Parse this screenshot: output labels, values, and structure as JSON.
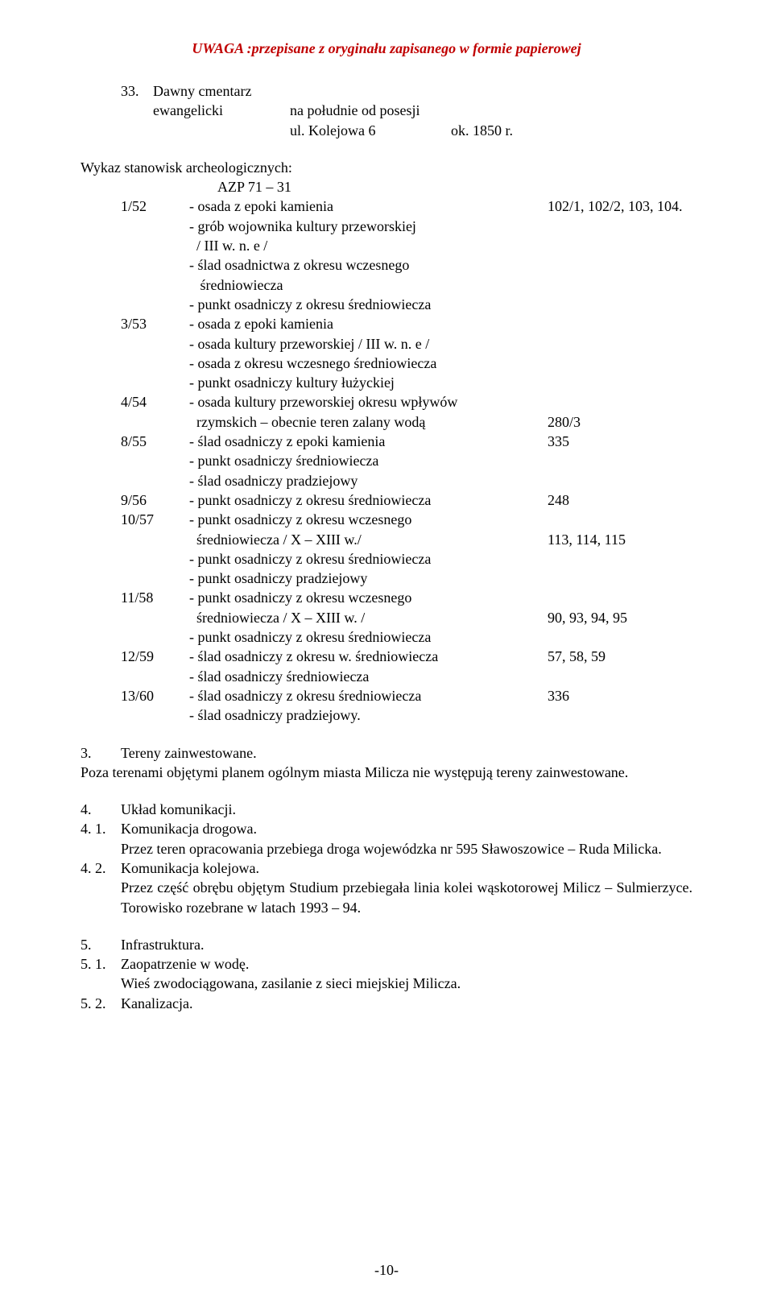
{
  "header": "UWAGA :przepisane z oryginału zapisanego w  formie papierowej",
  "item33": {
    "num": "33.",
    "label": "Dawny cmentarz",
    "sub1_label": "ewangelicki",
    "sub1_text": "na południe od posesji",
    "sub2_text": "ul. Kolejowa 6",
    "sub2_right": "ok. 1850 r."
  },
  "wykaz_title": "Wykaz stanowisk archeologicznych:",
  "azp_label": "AZP 71 – 31",
  "azp": [
    {
      "id": "1/52",
      "line": "- osada z epoki kamienia",
      "num": "102/1, 102/2, 103, 104.",
      "sub": [
        "- grób wojownika kultury przeworskiej",
        "  / III w. n. e /",
        "- ślad osadnictwa z okresu wczesnego",
        "   średniowiecza",
        "- punkt osadniczy z okresu średniowiecza"
      ]
    },
    {
      "id": "3/53",
      "line": "- osada z epoki kamienia",
      "num": "",
      "sub": [
        "- osada kultury przeworskiej / III w. n. e /",
        "- osada z okresu wczesnego średniowiecza",
        "- punkt osadniczy kultury łużyckiej"
      ]
    },
    {
      "id": "4/54",
      "line": "- osada kultury przeworskiej okresu wpływów",
      "num": "",
      "sub_special": {
        "text": "  rzymskich – obecnie teren zalany wodą",
        "num": "280/3"
      }
    },
    {
      "id": "8/55",
      "line": "- ślad osadniczy z epoki kamienia",
      "num": "335",
      "sub": [
        "- punkt osadniczy średniowiecza",
        "- ślad osadniczy pradziejowy"
      ]
    },
    {
      "id": "9/56",
      "line": "- punkt osadniczy z okresu średniowiecza",
      "num": "248",
      "sub": []
    },
    {
      "id": "10/57",
      "line": "- punkt osadniczy z okresu wczesnego",
      "num": "",
      "sub_special": {
        "text": "  średniowiecza / X – XIII w./",
        "num": "113, 114, 115"
      },
      "sub": [
        "- punkt osadniczy z okresu średniowiecza",
        "- punkt osadniczy pradziejowy"
      ]
    },
    {
      "id": "11/58",
      "line": "- punkt osadniczy z okresu wczesnego",
      "num": "",
      "sub_special": {
        "text": "  średniowiecza / X – XIII w. /",
        "num": "90, 93, 94, 95"
      },
      "sub": [
        "- punkt osadniczy z okresu średniowiecza"
      ]
    },
    {
      "id": "12/59",
      "line": "- ślad osadniczy z okresu w. średniowiecza",
      "num": "57, 58, 59",
      "sub": [
        "- ślad osadniczy średniowiecza"
      ]
    },
    {
      "id": "13/60",
      "line": "- ślad osadniczy z okresu średniowiecza",
      "num": "336",
      "sub": [
        "- ślad osadniczy pradziejowy."
      ]
    }
  ],
  "s3": {
    "num": "3.",
    "title": "Tereny zainwestowane.",
    "body": "Poza terenami objętymi planem ogólnym miasta Milicza nie występują tereny zainwestowane."
  },
  "s4": {
    "num": "4.",
    "title": "Układ komunikacji.",
    "sub1_num": "4. 1.",
    "sub1_title": "Komunikacja drogowa.",
    "sub1_body": "Przez teren opracowania przebiega droga wojewódzka nr 595 Sławoszowice – Ruda Milicka.",
    "sub2_num": "4. 2.",
    "sub2_title": "Komunikacja kolejowa.",
    "sub2_body": "Przez część obrębu objętym Studium przebiegała linia kolei wąskotorowej Milicz – Sulmierzyce. Torowisko rozebrane w latach 1993 – 94."
  },
  "s5": {
    "num": "5.",
    "title": "Infrastruktura.",
    "sub1_num": "5. 1.",
    "sub1_title": "Zaopatrzenie w wodę.",
    "sub1_body": "Wieś zwodociągowana, zasilanie z sieci miejskiej Milicza.",
    "sub2_num": "5. 2.",
    "sub2_title": "Kanalizacja."
  },
  "page_number": "-10-"
}
